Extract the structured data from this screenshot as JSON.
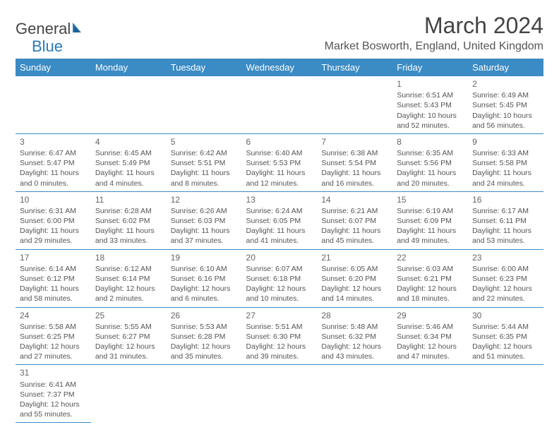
{
  "logo": {
    "part1": "General",
    "part2": "Blue"
  },
  "title": "March 2024",
  "location": "Market Bosworth, England, United Kingdom",
  "colors": {
    "header_bg": "#3b8bc4",
    "header_text": "#ffffff",
    "cell_border": "#3b8bc4",
    "text": "#555555",
    "logo_blue": "#2a7ab8"
  },
  "day_headers": [
    "Sunday",
    "Monday",
    "Tuesday",
    "Wednesday",
    "Thursday",
    "Friday",
    "Saturday"
  ],
  "weeks": [
    [
      null,
      null,
      null,
      null,
      null,
      {
        "n": "1",
        "sunrise": "Sunrise: 6:51 AM",
        "sunset": "Sunset: 5:43 PM",
        "daylight": "Daylight: 10 hours and 52 minutes."
      },
      {
        "n": "2",
        "sunrise": "Sunrise: 6:49 AM",
        "sunset": "Sunset: 5:45 PM",
        "daylight": "Daylight: 10 hours and 56 minutes."
      }
    ],
    [
      {
        "n": "3",
        "sunrise": "Sunrise: 6:47 AM",
        "sunset": "Sunset: 5:47 PM",
        "daylight": "Daylight: 11 hours and 0 minutes."
      },
      {
        "n": "4",
        "sunrise": "Sunrise: 6:45 AM",
        "sunset": "Sunset: 5:49 PM",
        "daylight": "Daylight: 11 hours and 4 minutes."
      },
      {
        "n": "5",
        "sunrise": "Sunrise: 6:42 AM",
        "sunset": "Sunset: 5:51 PM",
        "daylight": "Daylight: 11 hours and 8 minutes."
      },
      {
        "n": "6",
        "sunrise": "Sunrise: 6:40 AM",
        "sunset": "Sunset: 5:53 PM",
        "daylight": "Daylight: 11 hours and 12 minutes."
      },
      {
        "n": "7",
        "sunrise": "Sunrise: 6:38 AM",
        "sunset": "Sunset: 5:54 PM",
        "daylight": "Daylight: 11 hours and 16 minutes."
      },
      {
        "n": "8",
        "sunrise": "Sunrise: 6:35 AM",
        "sunset": "Sunset: 5:56 PM",
        "daylight": "Daylight: 11 hours and 20 minutes."
      },
      {
        "n": "9",
        "sunrise": "Sunrise: 6:33 AM",
        "sunset": "Sunset: 5:58 PM",
        "daylight": "Daylight: 11 hours and 24 minutes."
      }
    ],
    [
      {
        "n": "10",
        "sunrise": "Sunrise: 6:31 AM",
        "sunset": "Sunset: 6:00 PM",
        "daylight": "Daylight: 11 hours and 29 minutes."
      },
      {
        "n": "11",
        "sunrise": "Sunrise: 6:28 AM",
        "sunset": "Sunset: 6:02 PM",
        "daylight": "Daylight: 11 hours and 33 minutes."
      },
      {
        "n": "12",
        "sunrise": "Sunrise: 6:26 AM",
        "sunset": "Sunset: 6:03 PM",
        "daylight": "Daylight: 11 hours and 37 minutes."
      },
      {
        "n": "13",
        "sunrise": "Sunrise: 6:24 AM",
        "sunset": "Sunset: 6:05 PM",
        "daylight": "Daylight: 11 hours and 41 minutes."
      },
      {
        "n": "14",
        "sunrise": "Sunrise: 6:21 AM",
        "sunset": "Sunset: 6:07 PM",
        "daylight": "Daylight: 11 hours and 45 minutes."
      },
      {
        "n": "15",
        "sunrise": "Sunrise: 6:19 AM",
        "sunset": "Sunset: 6:09 PM",
        "daylight": "Daylight: 11 hours and 49 minutes."
      },
      {
        "n": "16",
        "sunrise": "Sunrise: 6:17 AM",
        "sunset": "Sunset: 6:11 PM",
        "daylight": "Daylight: 11 hours and 53 minutes."
      }
    ],
    [
      {
        "n": "17",
        "sunrise": "Sunrise: 6:14 AM",
        "sunset": "Sunset: 6:12 PM",
        "daylight": "Daylight: 11 hours and 58 minutes."
      },
      {
        "n": "18",
        "sunrise": "Sunrise: 6:12 AM",
        "sunset": "Sunset: 6:14 PM",
        "daylight": "Daylight: 12 hours and 2 minutes."
      },
      {
        "n": "19",
        "sunrise": "Sunrise: 6:10 AM",
        "sunset": "Sunset: 6:16 PM",
        "daylight": "Daylight: 12 hours and 6 minutes."
      },
      {
        "n": "20",
        "sunrise": "Sunrise: 6:07 AM",
        "sunset": "Sunset: 6:18 PM",
        "daylight": "Daylight: 12 hours and 10 minutes."
      },
      {
        "n": "21",
        "sunrise": "Sunrise: 6:05 AM",
        "sunset": "Sunset: 6:20 PM",
        "daylight": "Daylight: 12 hours and 14 minutes."
      },
      {
        "n": "22",
        "sunrise": "Sunrise: 6:03 AM",
        "sunset": "Sunset: 6:21 PM",
        "daylight": "Daylight: 12 hours and 18 minutes."
      },
      {
        "n": "23",
        "sunrise": "Sunrise: 6:00 AM",
        "sunset": "Sunset: 6:23 PM",
        "daylight": "Daylight: 12 hours and 22 minutes."
      }
    ],
    [
      {
        "n": "24",
        "sunrise": "Sunrise: 5:58 AM",
        "sunset": "Sunset: 6:25 PM",
        "daylight": "Daylight: 12 hours and 27 minutes."
      },
      {
        "n": "25",
        "sunrise": "Sunrise: 5:55 AM",
        "sunset": "Sunset: 6:27 PM",
        "daylight": "Daylight: 12 hours and 31 minutes."
      },
      {
        "n": "26",
        "sunrise": "Sunrise: 5:53 AM",
        "sunset": "Sunset: 6:28 PM",
        "daylight": "Daylight: 12 hours and 35 minutes."
      },
      {
        "n": "27",
        "sunrise": "Sunrise: 5:51 AM",
        "sunset": "Sunset: 6:30 PM",
        "daylight": "Daylight: 12 hours and 39 minutes."
      },
      {
        "n": "28",
        "sunrise": "Sunrise: 5:48 AM",
        "sunset": "Sunset: 6:32 PM",
        "daylight": "Daylight: 12 hours and 43 minutes."
      },
      {
        "n": "29",
        "sunrise": "Sunrise: 5:46 AM",
        "sunset": "Sunset: 6:34 PM",
        "daylight": "Daylight: 12 hours and 47 minutes."
      },
      {
        "n": "30",
        "sunrise": "Sunrise: 5:44 AM",
        "sunset": "Sunset: 6:35 PM",
        "daylight": "Daylight: 12 hours and 51 minutes."
      }
    ],
    [
      {
        "n": "31",
        "sunrise": "Sunrise: 6:41 AM",
        "sunset": "Sunset: 7:37 PM",
        "daylight": "Daylight: 12 hours and 55 minutes."
      },
      null,
      null,
      null,
      null,
      null,
      null
    ]
  ]
}
